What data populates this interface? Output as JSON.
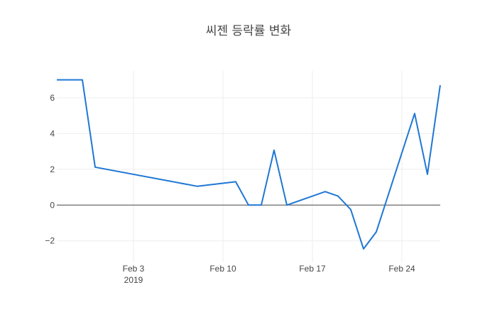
{
  "chart_data": {
    "type": "line",
    "title": "씨젠 등락률 변화",
    "xlabel": "",
    "ylabel": "",
    "x_range": [
      "2019-01-28",
      "2019-02-27"
    ],
    "ylim": [
      -3.2,
      7.5
    ],
    "grid": true,
    "x_ticks": [
      {
        "date": "2019-02-03",
        "label": "Feb 3",
        "sublabel": "2019"
      },
      {
        "date": "2019-02-10",
        "label": "Feb 10",
        "sublabel": ""
      },
      {
        "date": "2019-02-17",
        "label": "Feb 17",
        "sublabel": ""
      },
      {
        "date": "2019-02-24",
        "label": "Feb 24",
        "sublabel": ""
      }
    ],
    "y_ticks": [
      {
        "value": -2,
        "label": "−2"
      },
      {
        "value": 0,
        "label": "0"
      },
      {
        "value": 2,
        "label": "2"
      },
      {
        "value": 4,
        "label": "4"
      },
      {
        "value": 6,
        "label": "6"
      }
    ],
    "series": [
      {
        "color": "#1f77d4",
        "x": [
          "2019-01-28",
          "2019-01-30",
          "2019-01-31",
          "2019-02-08",
          "2019-02-11",
          "2019-02-12",
          "2019-02-13",
          "2019-02-14",
          "2019-02-15",
          "2019-02-18",
          "2019-02-19",
          "2019-02-20",
          "2019-02-21",
          "2019-02-22",
          "2019-02-25",
          "2019-02-26",
          "2019-02-27"
        ],
        "y": [
          7.0,
          7.0,
          2.12,
          1.05,
          1.3,
          0.0,
          0.0,
          3.07,
          0.0,
          0.75,
          0.5,
          -0.25,
          -2.45,
          -1.5,
          5.12,
          1.72,
          6.7
        ]
      }
    ]
  }
}
